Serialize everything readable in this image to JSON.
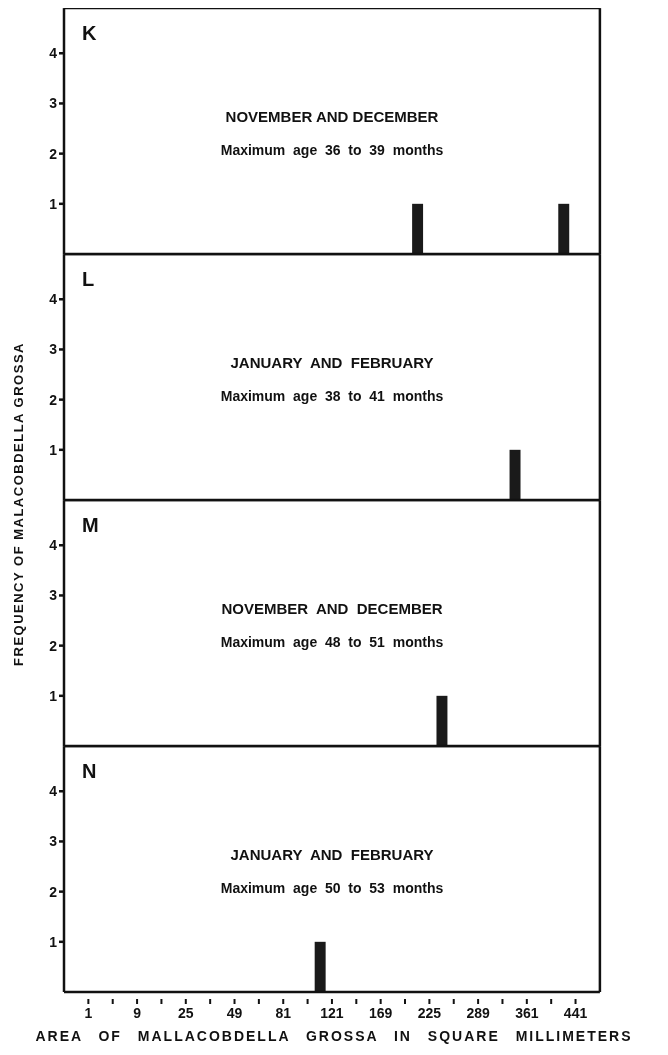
{
  "chart_data": [
    {
      "type": "bar",
      "title": "K",
      "annotations": [
        "NOVEMBER AND DECEMBER",
        "Maximum  age  36  to  39  months"
      ],
      "categories": [
        null,
        "1",
        null,
        null,
        null,
        "9",
        null,
        null,
        null,
        "25",
        null,
        null,
        null,
        "49",
        null,
        null,
        null,
        "81",
        null,
        null,
        null,
        "121",
        null,
        null,
        null,
        "169",
        null,
        null,
        null,
        "225",
        null,
        null,
        null,
        "289",
        null,
        null,
        null,
        "361",
        null,
        null,
        null,
        "441",
        null
      ],
      "values": [
        0,
        null,
        0,
        null,
        0,
        null,
        0,
        null,
        0,
        null,
        0,
        null,
        0,
        null,
        0,
        null,
        0,
        null,
        0,
        null,
        0,
        null,
        0,
        null,
        0,
        null,
        0,
        null,
        1,
        null,
        0,
        null,
        0,
        null,
        0,
        null,
        0,
        null,
        0,
        null,
        1,
        null,
        0
      ],
      "color": "#1a1a1a",
      "ylim": [
        0,
        4.9
      ],
      "yticks": [
        1,
        2,
        3,
        4
      ],
      "tick_labels": "y"
    },
    {
      "type": "bar",
      "title": "L",
      "ylabel": "FREQUENCY OF MALACOBDELLA GROSSA",
      "annotations": [
        "JANUARY  AND  FEBRUARY",
        "Maximum  age  38  to  41  months"
      ],
      "categories": [
        null,
        "1",
        null,
        null,
        null,
        "9",
        null,
        null,
        null,
        "25",
        null,
        null,
        null,
        "49",
        null,
        null,
        null,
        "81",
        null,
        null,
        null,
        "121",
        null,
        null,
        null,
        "169",
        null,
        null,
        null,
        "225",
        null,
        null,
        null,
        "289",
        null,
        null,
        null,
        "361",
        null,
        null,
        null,
        "441",
        null
      ],
      "values": [
        0,
        null,
        0,
        null,
        0,
        null,
        0,
        null,
        0,
        null,
        0,
        null,
        0,
        null,
        0,
        null,
        0,
        null,
        0,
        null,
        0,
        null,
        0,
        null,
        0,
        null,
        0,
        null,
        0,
        null,
        0,
        null,
        0,
        null,
        0,
        null,
        1,
        null,
        0,
        null,
        0,
        null,
        0
      ],
      "color": "#1a1a1a",
      "ylim": [
        0,
        4.9
      ],
      "yticks": [
        1,
        2,
        3,
        4
      ],
      "tick_labels": "y"
    },
    {
      "type": "bar",
      "title": "M",
      "annotations": [
        "NOVEMBER  AND  DECEMBER",
        "Maximum  age  48  to  51  months"
      ],
      "categories": [
        null,
        "1",
        null,
        null,
        null,
        "9",
        null,
        null,
        null,
        "25",
        null,
        null,
        null,
        "49",
        null,
        null,
        null,
        "81",
        null,
        null,
        null,
        "121",
        null,
        null,
        null,
        "169",
        null,
        null,
        null,
        "225",
        null,
        null,
        null,
        "289",
        null,
        null,
        null,
        "361",
        null,
        null,
        null,
        "441",
        null
      ],
      "values": [
        0,
        null,
        0,
        null,
        0,
        null,
        0,
        null,
        0,
        null,
        0,
        null,
        0,
        null,
        0,
        null,
        0,
        null,
        0,
        null,
        0,
        null,
        0,
        null,
        0,
        null,
        0,
        null,
        0,
        null,
        1,
        null,
        0,
        null,
        0,
        null,
        0,
        null,
        0,
        null,
        0,
        null,
        0
      ],
      "color": "#1a1a1a",
      "ylim": [
        0,
        4.9
      ],
      "yticks": [
        1,
        2,
        3,
        4
      ],
      "tick_labels": "y"
    },
    {
      "type": "bar",
      "title": "N",
      "xlabel": "AREA OF MALLACOBDELLA GROSSA IN SQUARE MILLIMETERS",
      "annotations": [
        "JANUARY  AND  FEBRUARY",
        "Maximum  age  50  to  53  months"
      ],
      "categories": [
        null,
        "1",
        null,
        null,
        null,
        "9",
        null,
        null,
        null,
        "25",
        null,
        null,
        null,
        "49",
        null,
        null,
        null,
        "81",
        null,
        null,
        null,
        "121",
        null,
        null,
        null,
        "169",
        null,
        null,
        null,
        "225",
        null,
        null,
        null,
        "289",
        null,
        null,
        null,
        "361",
        null,
        null,
        null,
        "441",
        null
      ],
      "values": [
        0,
        null,
        0,
        null,
        0,
        null,
        0,
        null,
        0,
        null,
        0,
        null,
        0,
        null,
        0,
        null,
        0,
        null,
        0,
        null,
        1,
        null,
        0,
        null,
        0,
        null,
        0,
        null,
        0,
        null,
        0,
        null,
        0,
        null,
        0,
        null,
        0,
        null,
        0,
        null,
        0,
        null,
        0
      ],
      "color": "#1a1a1a",
      "ylim": [
        0,
        4.9
      ],
      "yticks": [
        1,
        2,
        3,
        4
      ]
    }
  ]
}
